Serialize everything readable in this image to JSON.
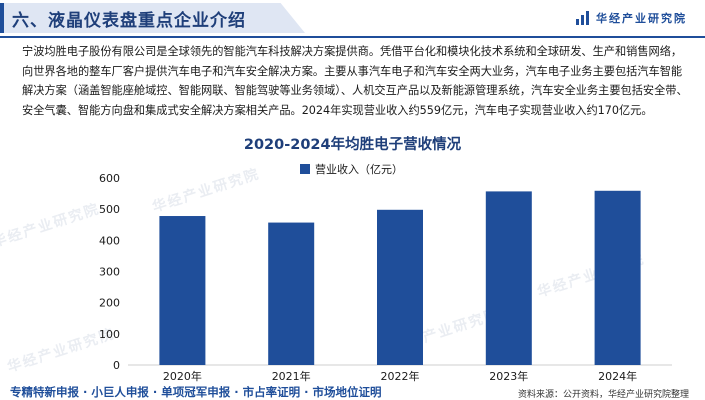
{
  "header": {
    "title": "六、液晶仪表盘重点企业介绍",
    "brand": "华经产业研究院"
  },
  "intro": "宁波均胜电子股份有限公司是全球领先的智能汽车科技解决方案提供商。凭借平台化和模块化技术系统和全球研发、生产和销售网络，向世界各地的整车厂客户提供汽车电子和汽车安全解决方案。主要从事汽车电子和汽车安全两大业务，汽车电子业务主要包括汽车智能解决方案（涵盖智能座舱域控、智能网联、智能驾驶等业务领域）、人机交互产品以及新能源管理系统，汽车安全业务主要包括安全带、安全气囊、智能方向盘和集成式安全解决方案相关产品。2024年实现营业收入约559亿元，汽车电子实现营业收入约170亿元。",
  "watermark": "华经产业研究院",
  "footer": {
    "tags": "专精特新申报 · 小巨人申报 · 单项冠军申报 · 市占率证明 · 市场地位证明",
    "source": "资料来源：公开资料，华经产业研究院整理"
  },
  "colors": {
    "bar": "#1f4e9a",
    "title": "#1f3f7a",
    "axis": "#cfcfcf"
  },
  "chart_data": {
    "type": "bar",
    "title": "2020-2024年均胜电子营收情况",
    "categories": [
      "2020年",
      "2021年",
      "2022年",
      "2023年",
      "2024年"
    ],
    "series": [
      {
        "name": "营业收入（亿元）",
        "values": [
          478,
          457,
          498,
          557,
          559
        ]
      }
    ],
    "ylim": [
      0,
      600
    ],
    "yticks": [
      0,
      100,
      200,
      300,
      400,
      500,
      600
    ],
    "grid": false,
    "legend": "top-left"
  }
}
